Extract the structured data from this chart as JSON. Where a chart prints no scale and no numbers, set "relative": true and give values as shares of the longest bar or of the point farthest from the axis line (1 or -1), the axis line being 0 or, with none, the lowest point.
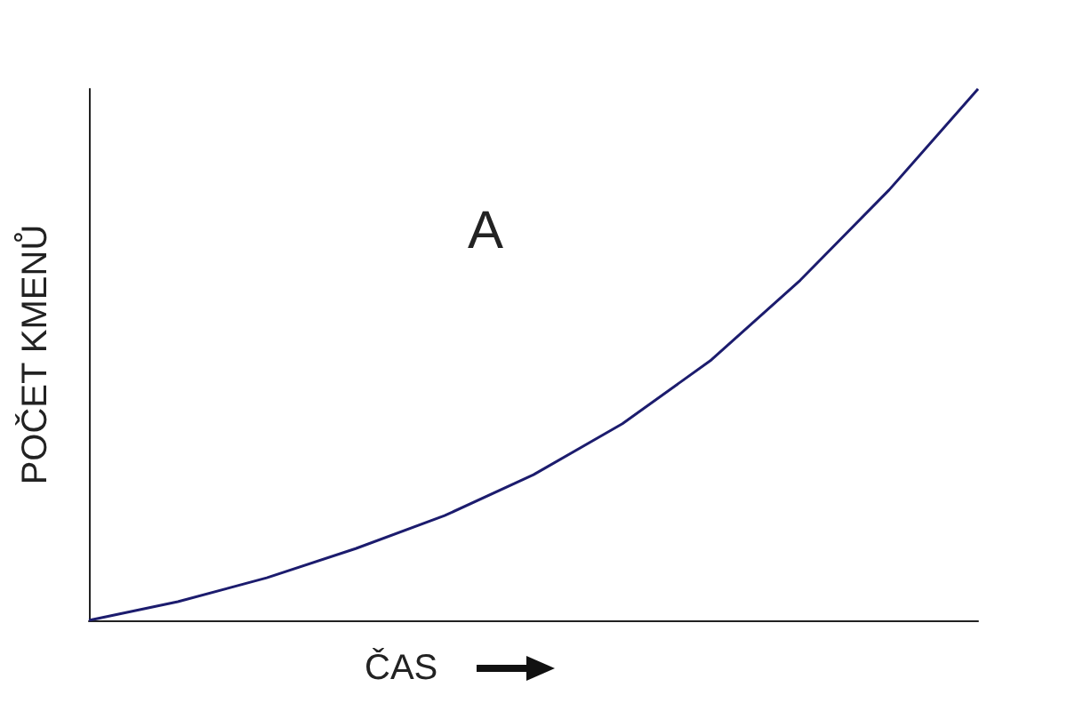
{
  "chart_data": {
    "type": "line",
    "relative": true,
    "xlabel": "ČAS",
    "ylabel": "POČET KMENŮ",
    "annotations": [
      "A"
    ],
    "categories": [
      null,
      null,
      null,
      null,
      null,
      null,
      null,
      null,
      null,
      null,
      null
    ],
    "series": [
      {
        "color": "#1c1c6e",
        "values": [
          0,
          0.035,
          0.08,
          0.135,
          0.197,
          0.274,
          0.37,
          0.49,
          0.64,
          0.81,
          1.0
        ]
      }
    ],
    "grid": false,
    "marker": "none",
    "line_style": "solid"
  }
}
